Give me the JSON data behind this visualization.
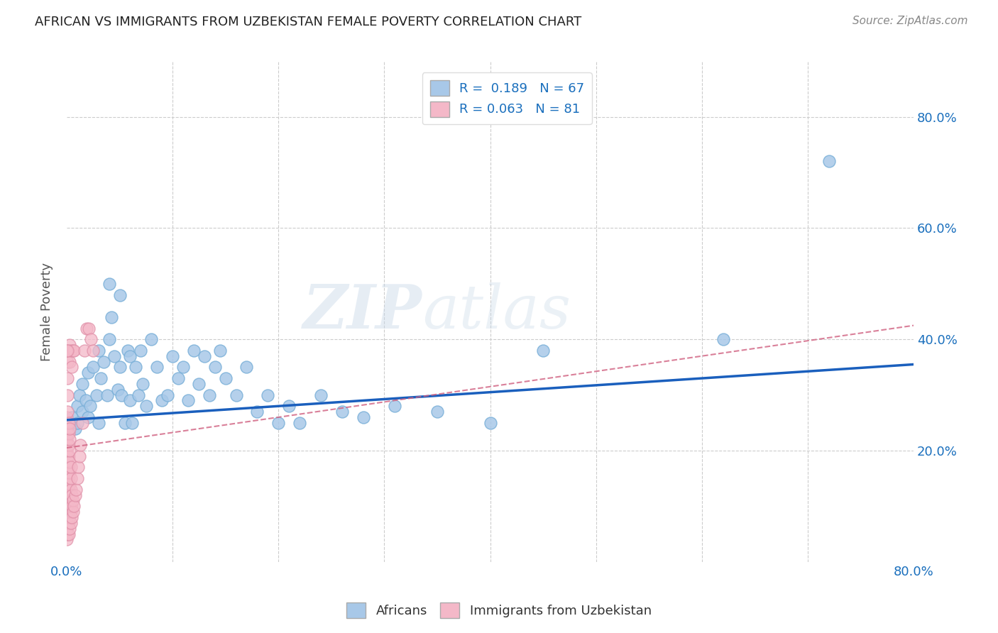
{
  "title": "AFRICAN VS IMMIGRANTS FROM UZBEKISTAN FEMALE POVERTY CORRELATION CHART",
  "source": "Source: ZipAtlas.com",
  "ylabel": "Female Poverty",
  "ytick_labels": [
    "20.0%",
    "40.0%",
    "60.0%",
    "80.0%"
  ],
  "ytick_values": [
    0.2,
    0.4,
    0.6,
    0.8
  ],
  "xlim": [
    0.0,
    0.8
  ],
  "ylim": [
    0.0,
    0.9
  ],
  "watermark": "ZIPatlas",
  "legend_R1": "R =  0.189",
  "legend_N1": "N = 67",
  "legend_R2": "R = 0.063",
  "legend_N2": "N = 81",
  "blue_color": "#a8c8e8",
  "pink_color": "#f4b8c8",
  "blue_line_color": "#1a5fbd",
  "pink_line_color": "#d06080",
  "africans_x": [
    0.005,
    0.008,
    0.01,
    0.01,
    0.012,
    0.015,
    0.015,
    0.018,
    0.02,
    0.02,
    0.022,
    0.025,
    0.028,
    0.03,
    0.03,
    0.032,
    0.035,
    0.038,
    0.04,
    0.04,
    0.042,
    0.045,
    0.048,
    0.05,
    0.05,
    0.052,
    0.055,
    0.058,
    0.06,
    0.06,
    0.062,
    0.065,
    0.068,
    0.07,
    0.072,
    0.075,
    0.08,
    0.085,
    0.09,
    0.095,
    0.1,
    0.105,
    0.11,
    0.115,
    0.12,
    0.125,
    0.13,
    0.135,
    0.14,
    0.145,
    0.15,
    0.16,
    0.17,
    0.18,
    0.19,
    0.2,
    0.21,
    0.22,
    0.24,
    0.26,
    0.28,
    0.31,
    0.35,
    0.4,
    0.45,
    0.62,
    0.72
  ],
  "africans_y": [
    0.26,
    0.24,
    0.28,
    0.25,
    0.3,
    0.27,
    0.32,
    0.29,
    0.34,
    0.26,
    0.28,
    0.35,
    0.3,
    0.38,
    0.25,
    0.33,
    0.36,
    0.3,
    0.5,
    0.4,
    0.44,
    0.37,
    0.31,
    0.48,
    0.35,
    0.3,
    0.25,
    0.38,
    0.37,
    0.29,
    0.25,
    0.35,
    0.3,
    0.38,
    0.32,
    0.28,
    0.4,
    0.35,
    0.29,
    0.3,
    0.37,
    0.33,
    0.35,
    0.29,
    0.38,
    0.32,
    0.37,
    0.3,
    0.35,
    0.38,
    0.33,
    0.3,
    0.35,
    0.27,
    0.3,
    0.25,
    0.28,
    0.25,
    0.3,
    0.27,
    0.26,
    0.28,
    0.27,
    0.25,
    0.38,
    0.4,
    0.72
  ],
  "uzbek_x": [
    0.0,
    0.0,
    0.0,
    0.0,
    0.0,
    0.0,
    0.0,
    0.0,
    0.0,
    0.0,
    0.0,
    0.0,
    0.001,
    0.001,
    0.001,
    0.001,
    0.001,
    0.001,
    0.001,
    0.001,
    0.001,
    0.001,
    0.001,
    0.001,
    0.001,
    0.001,
    0.001,
    0.002,
    0.002,
    0.002,
    0.002,
    0.002,
    0.002,
    0.002,
    0.002,
    0.002,
    0.002,
    0.002,
    0.002,
    0.003,
    0.003,
    0.003,
    0.003,
    0.003,
    0.003,
    0.003,
    0.003,
    0.003,
    0.003,
    0.003,
    0.003,
    0.004,
    0.004,
    0.004,
    0.004,
    0.004,
    0.004,
    0.004,
    0.005,
    0.005,
    0.005,
    0.005,
    0.006,
    0.006,
    0.006,
    0.007,
    0.007,
    0.008,
    0.009,
    0.01,
    0.011,
    0.012,
    0.013,
    0.015,
    0.017,
    0.019,
    0.021,
    0.023,
    0.025,
    0.0,
    0.001
  ],
  "uzbek_y": [
    0.04,
    0.06,
    0.08,
    0.1,
    0.12,
    0.14,
    0.16,
    0.18,
    0.2,
    0.22,
    0.24,
    0.26,
    0.05,
    0.07,
    0.09,
    0.11,
    0.13,
    0.15,
    0.17,
    0.19,
    0.21,
    0.23,
    0.25,
    0.27,
    0.3,
    0.33,
    0.36,
    0.05,
    0.07,
    0.09,
    0.11,
    0.13,
    0.15,
    0.17,
    0.19,
    0.21,
    0.23,
    0.25,
    0.38,
    0.06,
    0.08,
    0.1,
    0.12,
    0.14,
    0.16,
    0.18,
    0.2,
    0.22,
    0.24,
    0.36,
    0.39,
    0.07,
    0.09,
    0.11,
    0.13,
    0.15,
    0.17,
    0.38,
    0.08,
    0.1,
    0.12,
    0.35,
    0.09,
    0.11,
    0.38,
    0.1,
    0.38,
    0.12,
    0.13,
    0.15,
    0.17,
    0.19,
    0.21,
    0.25,
    0.38,
    0.42,
    0.42,
    0.4,
    0.38,
    0.38,
    0.38
  ],
  "blue_line_y0": 0.255,
  "blue_line_y1": 0.355,
  "pink_line_y0": 0.205,
  "pink_line_y1": 0.425
}
